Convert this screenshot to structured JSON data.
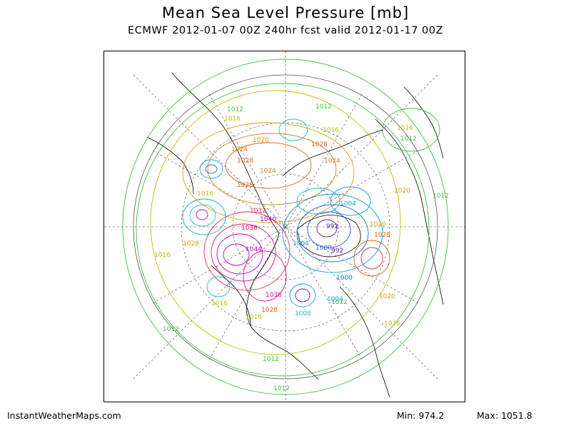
{
  "header": {
    "title": "Mean Sea Level Pressure [mb]",
    "subtitle": "ECMWF 2012-01-07 00Z 240hr fcst valid 2012-01-17 00Z"
  },
  "footer": {
    "credit": "InstantWeatherMaps.com",
    "min": "Min:  974.2",
    "max": "Max: 1051.8"
  },
  "map": {
    "projection": "polar stereographic (north pole)",
    "contour_labels": [
      {
        "text": "1012",
        "color": "#40c040"
      },
      {
        "text": "1016",
        "color": "#c0c000"
      },
      {
        "text": "1020",
        "color": "#e0a000"
      },
      {
        "text": "1024",
        "color": "#d08020"
      },
      {
        "text": "1028",
        "color": "#e06010"
      },
      {
        "text": "1032",
        "color": "#e03050"
      },
      {
        "text": "1036",
        "color": "#e01080"
      },
      {
        "text": "1040",
        "color": "#c000c0"
      },
      {
        "text": "1044",
        "color": "#c000c0"
      },
      {
        "text": "1004",
        "color": "#10a0e0"
      },
      {
        "text": "1000",
        "color": "#1070e0"
      },
      {
        "text": "992",
        "color": "#6020c0"
      },
      {
        "text": "1008",
        "color": "#20c0c0"
      }
    ],
    "colors": {
      "coast": "#000000",
      "graticule": "#000000",
      "c1012": "#40c040",
      "c1016": "#c0c000",
      "c1020": "#e0a000",
      "c1028": "#e06010",
      "c1036": "#e01080",
      "c1044": "#c000c0",
      "c1004": "#10a0e0",
      "c992": "#6020c0"
    }
  }
}
